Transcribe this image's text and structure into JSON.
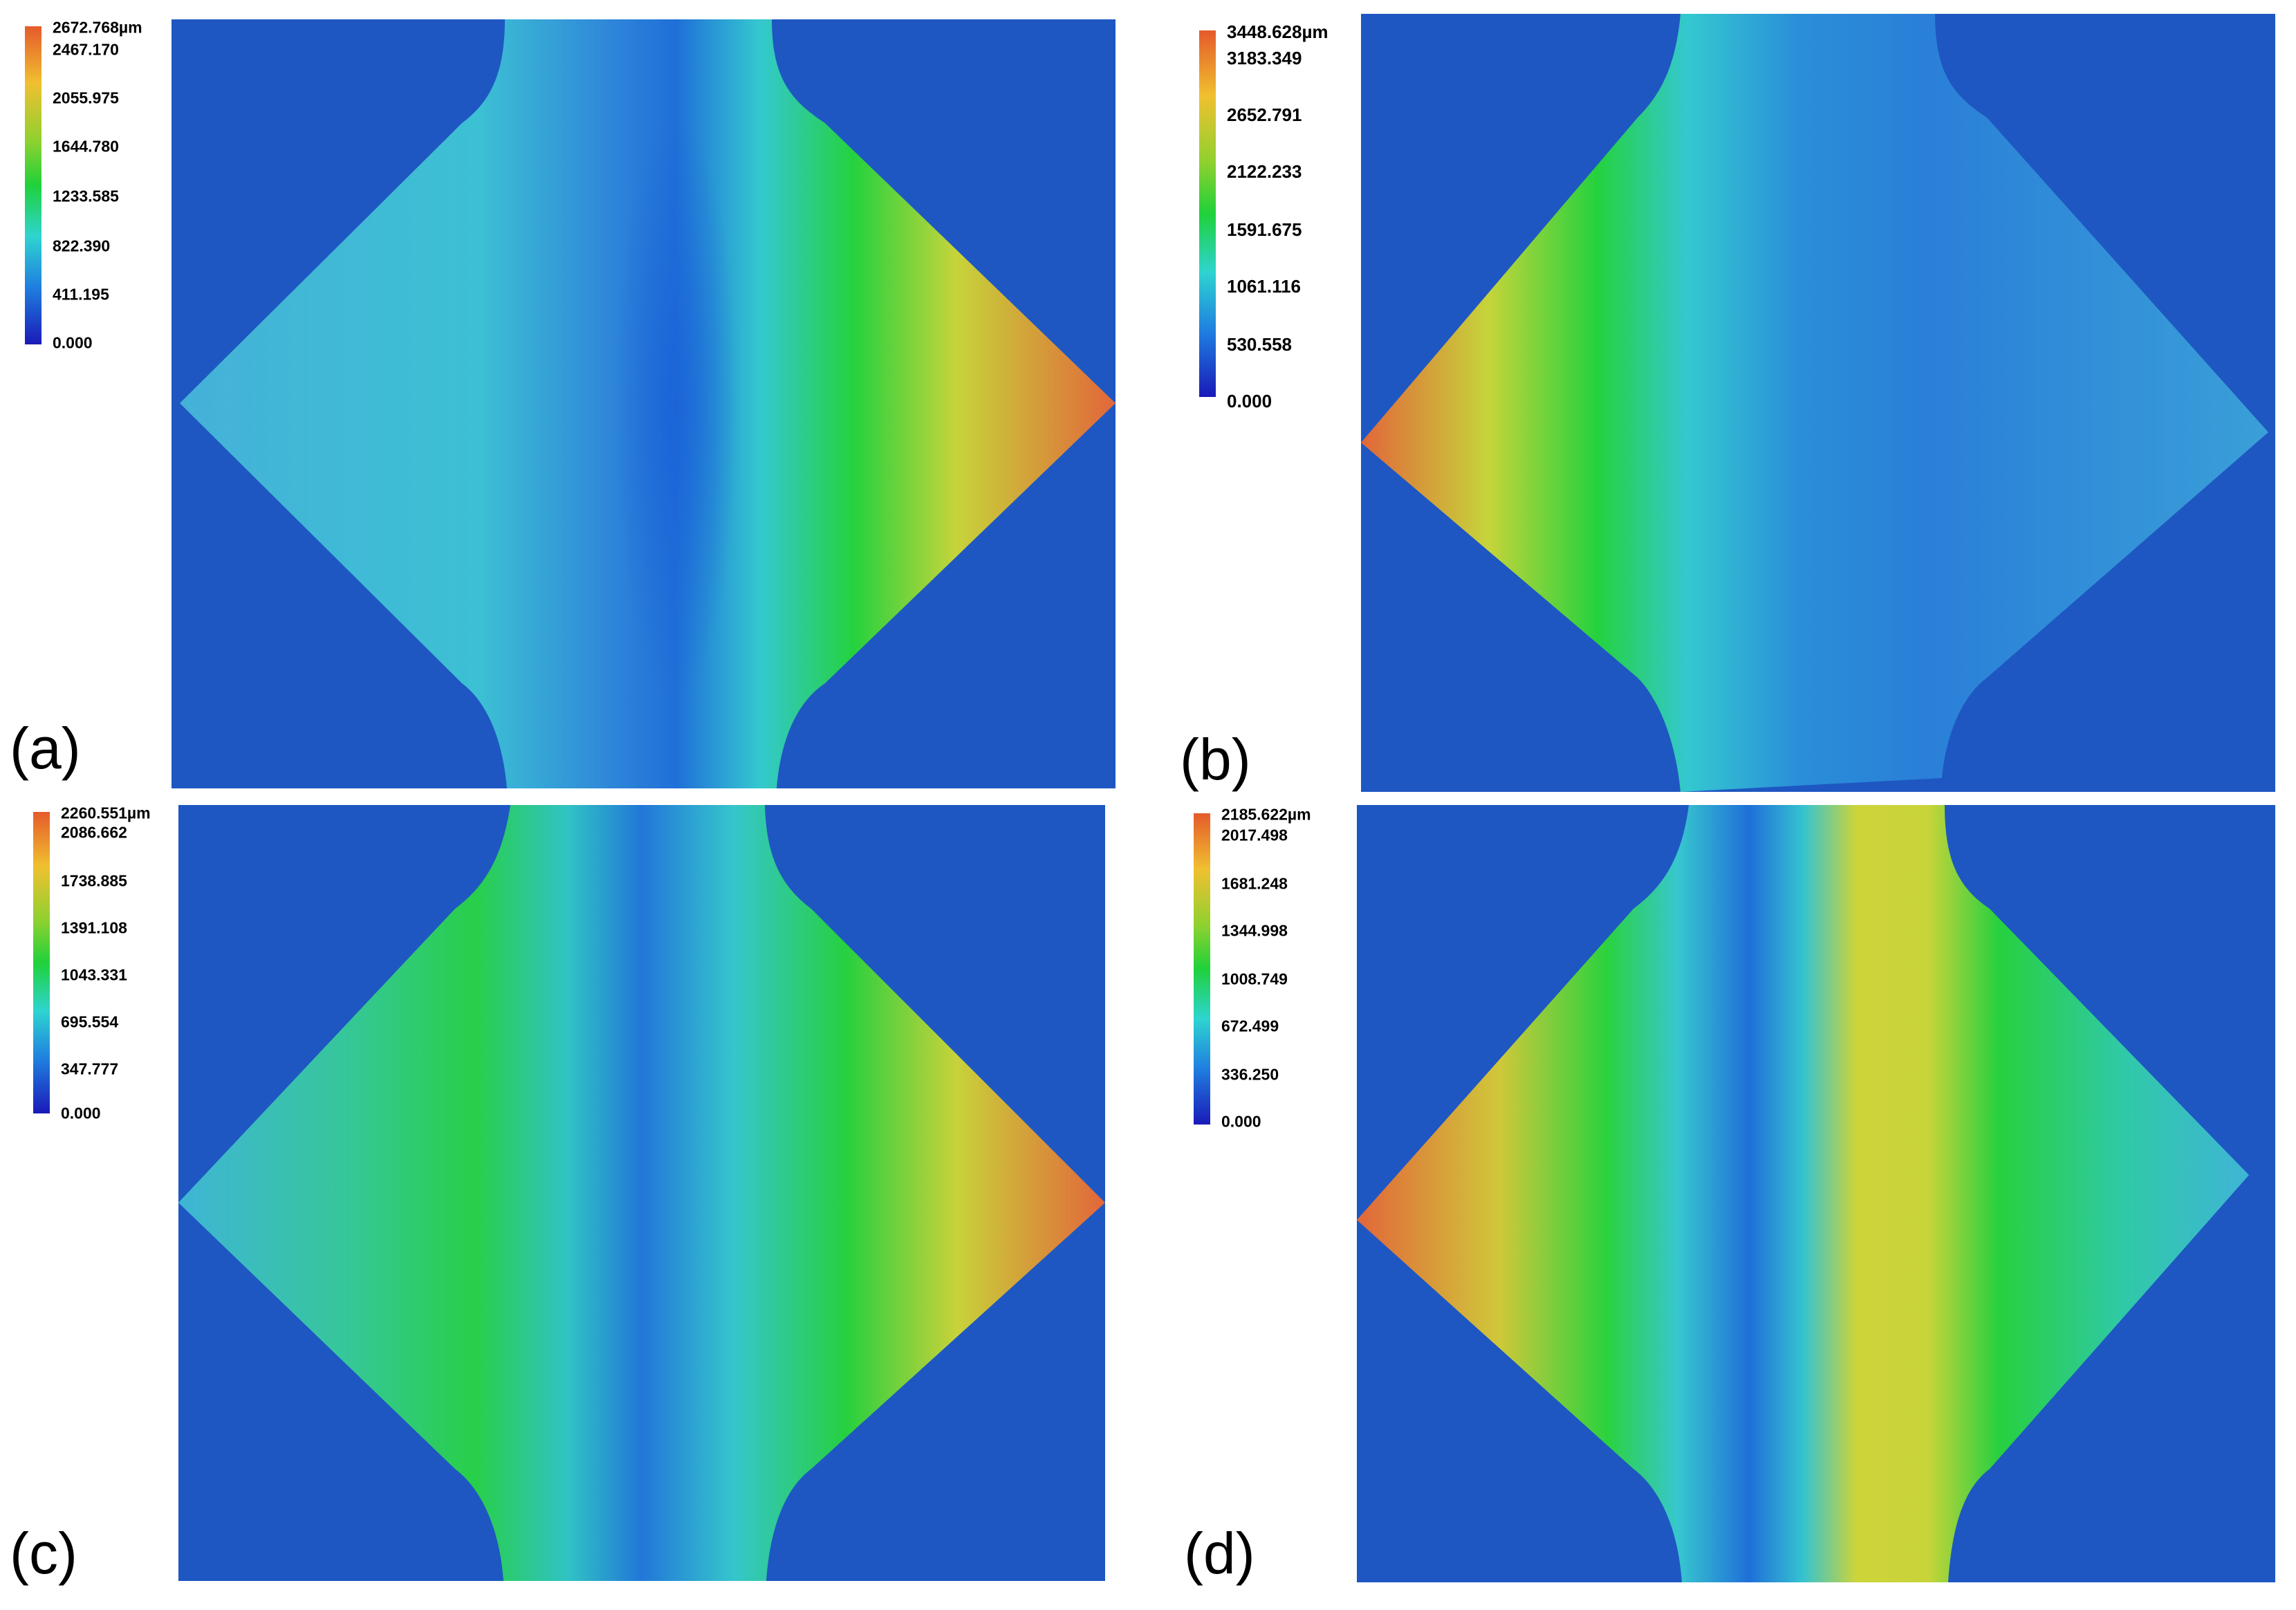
{
  "panels": [
    {
      "label": "(a)",
      "legend": [
        "2672.768µm",
        "2467.170",
        "2055.975",
        "1644.780",
        "1233.585",
        "822.390",
        "411.195",
        "0.000"
      ],
      "hot_side": "right",
      "colors": {
        "background": "#1e57c2",
        "edge": "#e2663a",
        "mid": "#1fd13a",
        "core": "#1a6fd4"
      }
    },
    {
      "label": "(b)",
      "legend": [
        "3448.628µm",
        "3183.349",
        "2652.791",
        "2122.233",
        "1591.675",
        "1061.116",
        "530.558",
        "0.000"
      ],
      "hot_side": "left",
      "colors": {
        "background": "#1e57c2",
        "edge": "#e2663a",
        "mid": "#1fd13a",
        "core": "#1a6fd4"
      }
    },
    {
      "label": "(c)",
      "legend": [
        "2260.551µm",
        "2086.662",
        "1738.885",
        "1391.108",
        "1043.331",
        "695.554",
        "347.777",
        "0.000"
      ],
      "hot_side": "right",
      "colors": {
        "background": "#1e57c2",
        "edge": "#e2663a",
        "mid": "#1fd13a",
        "core": "#1a6fd4"
      }
    },
    {
      "label": "(d)",
      "legend": [
        "2185.622µm",
        "2017.498",
        "1681.248",
        "1344.998",
        "1008.749",
        "672.499",
        "336.250",
        "0.000"
      ],
      "hot_side": "left",
      "colors": {
        "background": "#1e57c2",
        "edge": "#e2663a",
        "mid": "#1fd13a",
        "core": "#1a6fd4"
      }
    }
  ]
}
